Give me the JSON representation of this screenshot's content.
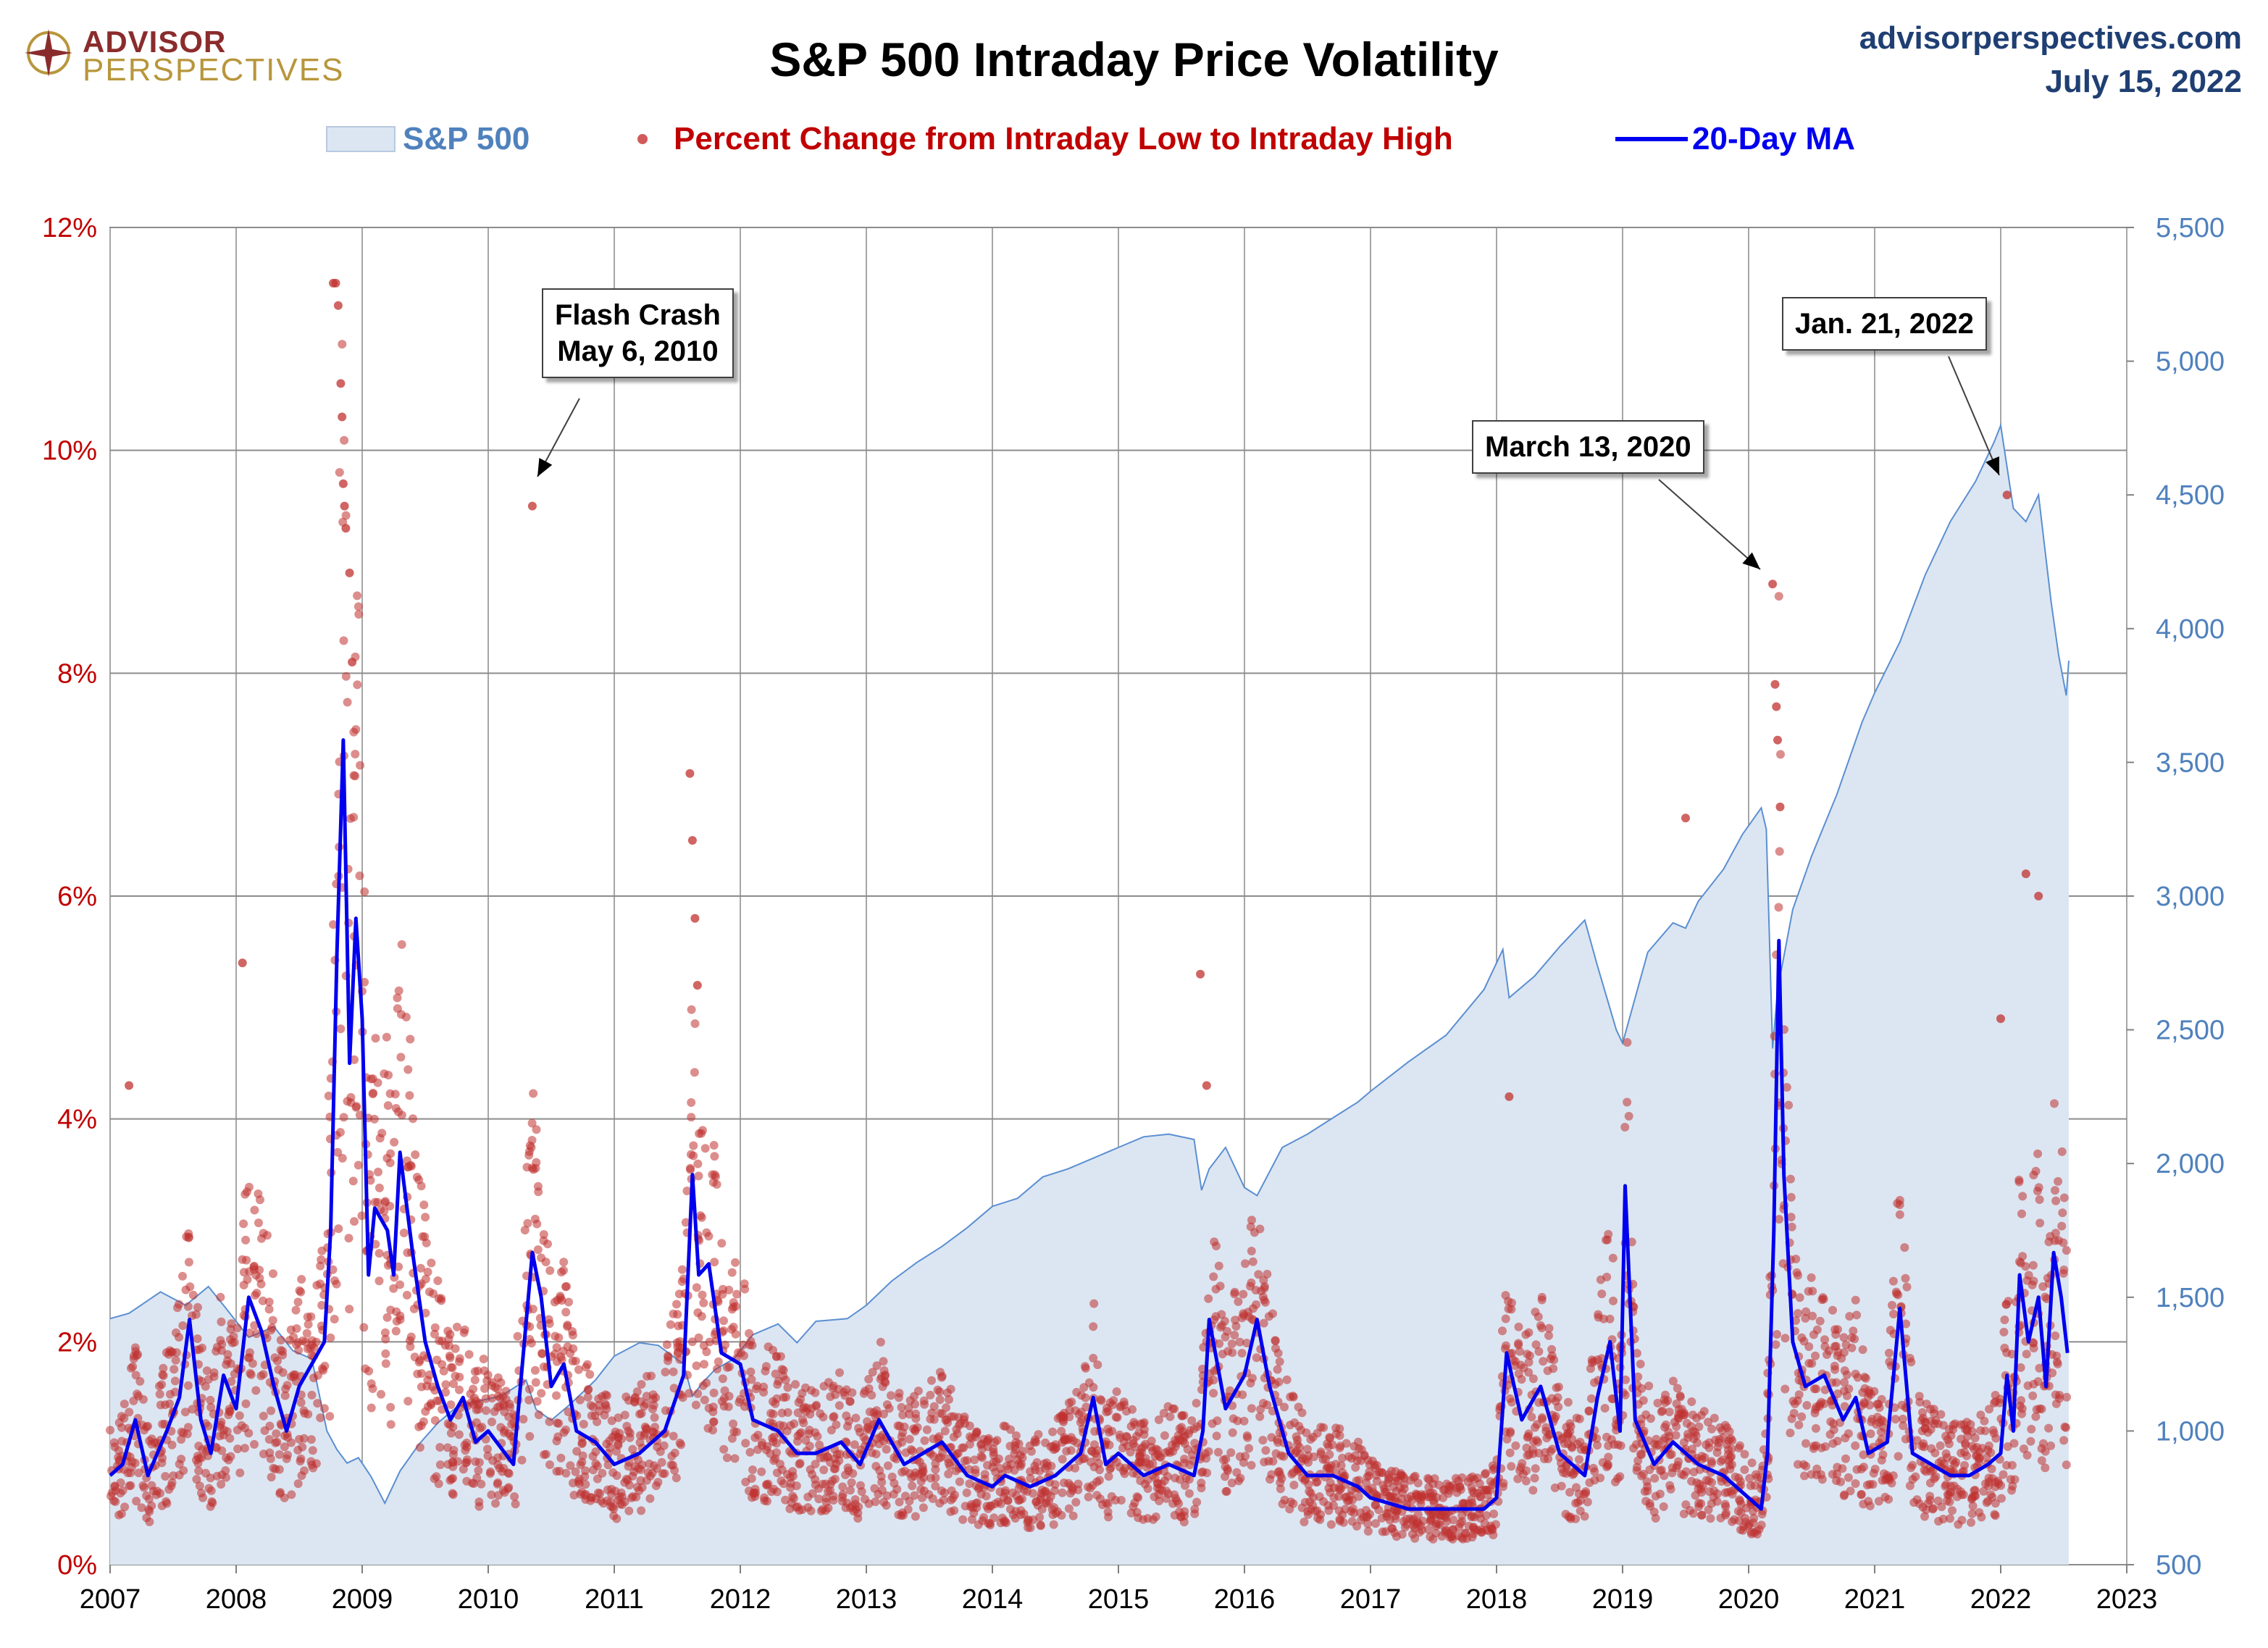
{
  "header": {
    "brand_top": "ADVISOR",
    "brand_bottom": "PERSPECTIVES",
    "title": "S&P 500 Intraday Price Volatility",
    "site": "advisorperspectives.com",
    "date": "July 15, 2022"
  },
  "legend": {
    "sp500": "S&P 500",
    "pct": "Percent Change from Intraday Low to Intraday High",
    "ma": "20-Day MA"
  },
  "callouts": {
    "flash": [
      "Flash Crash",
      "May 6, 2010"
    ],
    "march": [
      "March 13, 2020"
    ],
    "jan": [
      "Jan. 21, 2022"
    ]
  },
  "colors": {
    "area_fill": "#dce6f2",
    "area_line": "#5b8fd1",
    "dots": "#c0312f",
    "ma_line": "#0000ee",
    "left_axis_text": "#c00000",
    "right_axis_text": "#4f81bd",
    "title_text": "#1f3f73"
  },
  "chart_data": {
    "type": "line",
    "title": "S&P 500 Intraday Price Volatility",
    "x_ticks": [
      "2007",
      "2008",
      "2009",
      "2010",
      "2011",
      "2012",
      "2013",
      "2014",
      "2015",
      "2016",
      "2017",
      "2018",
      "2019",
      "2020",
      "2021",
      "2022",
      "2023"
    ],
    "xlim": [
      2007,
      2023
    ],
    "left_axis": {
      "ticks": [
        "0%",
        "2%",
        "4%",
        "6%",
        "8%",
        "10%",
        "12%"
      ],
      "ylim": [
        0,
        12
      ],
      "unit": "%"
    },
    "right_axis": {
      "ticks": [
        "500",
        "1,000",
        "1,500",
        "2,000",
        "2,500",
        "3,000",
        "3,500",
        "4,000",
        "4,500",
        "5,000",
        "5,500"
      ],
      "ylim": [
        500,
        5500
      ]
    },
    "grid": true,
    "legend_position": "top",
    "series": [
      {
        "name": "S&P 500",
        "kind": "area",
        "axis": "right",
        "x": [
          2007.0,
          2007.15,
          2007.4,
          2007.6,
          2007.78,
          2007.9,
          2008.1,
          2008.3,
          2008.45,
          2008.6,
          2008.72,
          2008.8,
          2008.88,
          2008.97,
          2009.07,
          2009.18,
          2009.3,
          2009.45,
          2009.6,
          2009.75,
          2009.9,
          2010.1,
          2010.3,
          2010.38,
          2010.5,
          2010.65,
          2010.85,
          2011.0,
          2011.2,
          2011.35,
          2011.55,
          2011.62,
          2011.7,
          2011.8,
          2011.95,
          2012.1,
          2012.3,
          2012.45,
          2012.6,
          2012.85,
          2013.0,
          2013.2,
          2013.4,
          2013.6,
          2013.8,
          2014.0,
          2014.2,
          2014.4,
          2014.6,
          2014.8,
          2015.0,
          2015.2,
          2015.4,
          2015.6,
          2015.66,
          2015.72,
          2015.85,
          2016.0,
          2016.1,
          2016.3,
          2016.5,
          2016.7,
          2016.9,
          2017.0,
          2017.3,
          2017.6,
          2017.9,
          2018.05,
          2018.1,
          2018.3,
          2018.5,
          2018.7,
          2018.8,
          2018.95,
          2019.0,
          2019.2,
          2019.4,
          2019.5,
          2019.6,
          2019.8,
          2019.95,
          2020.1,
          2020.14,
          2020.19,
          2020.23,
          2020.35,
          2020.5,
          2020.7,
          2020.9,
          2021.0,
          2021.2,
          2021.4,
          2021.6,
          2021.8,
          2021.95,
          2022.0,
          2022.1,
          2022.2,
          2022.3,
          2022.4,
          2022.46,
          2022.52,
          2022.54
        ],
        "values": [
          1420,
          1440,
          1520,
          1470,
          1540,
          1470,
          1350,
          1390,
          1300,
          1270,
          1000,
          930,
          880,
          900,
          830,
          730,
          850,
          950,
          1030,
          1090,
          1110,
          1130,
          1190,
          1080,
          1040,
          1100,
          1190,
          1280,
          1330,
          1320,
          1250,
          1130,
          1180,
          1230,
          1270,
          1360,
          1400,
          1330,
          1410,
          1420,
          1470,
          1560,
          1630,
          1690,
          1760,
          1840,
          1870,
          1950,
          1980,
          2020,
          2060,
          2100,
          2110,
          2090,
          1900,
          1980,
          2060,
          1910,
          1880,
          2060,
          2110,
          2170,
          2230,
          2270,
          2380,
          2480,
          2650,
          2800,
          2620,
          2700,
          2810,
          2910,
          2740,
          2500,
          2450,
          2790,
          2900,
          2880,
          2980,
          3100,
          3230,
          3330,
          3250,
          2430,
          2650,
          2950,
          3150,
          3380,
          3650,
          3760,
          3950,
          4200,
          4400,
          4550,
          4700,
          4760,
          4450,
          4400,
          4500,
          4100,
          3900,
          3750,
          3880
        ]
      },
      {
        "name": "20-Day MA",
        "kind": "line",
        "axis": "left",
        "x": [
          2007.0,
          2007.1,
          2007.2,
          2007.3,
          2007.45,
          2007.55,
          2007.63,
          2007.72,
          2007.8,
          2007.9,
          2008.0,
          2008.1,
          2008.2,
          2008.3,
          2008.4,
          2008.5,
          2008.6,
          2008.7,
          2008.75,
          2008.8,
          2008.85,
          2008.9,
          2008.95,
          2009.0,
          2009.05,
          2009.1,
          2009.2,
          2009.25,
          2009.3,
          2009.4,
          2009.5,
          2009.6,
          2009.7,
          2009.8,
          2009.9,
          2010.0,
          2010.2,
          2010.35,
          2010.42,
          2010.5,
          2010.6,
          2010.7,
          2010.85,
          2011.0,
          2011.2,
          2011.4,
          2011.55,
          2011.62,
          2011.67,
          2011.75,
          2011.85,
          2012.0,
          2012.1,
          2012.3,
          2012.45,
          2012.6,
          2012.8,
          2012.95,
          2013.1,
          2013.3,
          2013.45,
          2013.6,
          2013.8,
          2014.0,
          2014.1,
          2014.3,
          2014.5,
          2014.7,
          2014.8,
          2014.9,
          2015.0,
          2015.2,
          2015.4,
          2015.6,
          2015.67,
          2015.72,
          2015.85,
          2016.0,
          2016.1,
          2016.2,
          2016.35,
          2016.5,
          2016.7,
          2016.9,
          2017.0,
          2017.3,
          2017.6,
          2017.9,
          2018.0,
          2018.08,
          2018.2,
          2018.35,
          2018.5,
          2018.7,
          2018.8,
          2018.9,
          2018.98,
          2019.02,
          2019.1,
          2019.25,
          2019.4,
          2019.6,
          2019.8,
          2020.0,
          2020.1,
          2020.15,
          2020.2,
          2020.24,
          2020.28,
          2020.35,
          2020.45,
          2020.6,
          2020.75,
          2020.85,
          2020.95,
          2021.1,
          2021.2,
          2021.3,
          2021.45,
          2021.6,
          2021.75,
          2021.9,
          2022.0,
          2022.05,
          2022.1,
          2022.15,
          2022.22,
          2022.3,
          2022.36,
          2022.42,
          2022.48,
          2022.53
        ],
        "values": [
          0.8,
          0.9,
          1.3,
          0.8,
          1.2,
          1.5,
          2.2,
          1.3,
          1.0,
          1.7,
          1.4,
          2.4,
          2.1,
          1.6,
          1.2,
          1.6,
          1.8,
          2.0,
          3.0,
          5.5,
          7.4,
          4.5,
          5.8,
          4.9,
          2.6,
          3.2,
          3.0,
          2.6,
          3.7,
          2.8,
          2.0,
          1.6,
          1.3,
          1.5,
          1.1,
          1.2,
          0.9,
          2.8,
          2.4,
          1.6,
          1.8,
          1.2,
          1.1,
          0.9,
          1.0,
          1.2,
          1.7,
          3.5,
          2.6,
          2.7,
          1.9,
          1.8,
          1.3,
          1.2,
          1.0,
          1.0,
          1.1,
          0.9,
          1.3,
          0.9,
          1.0,
          1.1,
          0.8,
          0.7,
          0.8,
          0.7,
          0.8,
          1.0,
          1.5,
          0.9,
          1.0,
          0.8,
          0.9,
          0.8,
          1.2,
          2.2,
          1.4,
          1.7,
          2.2,
          1.6,
          1.0,
          0.8,
          0.8,
          0.7,
          0.6,
          0.5,
          0.5,
          0.5,
          0.6,
          1.9,
          1.3,
          1.6,
          1.0,
          0.8,
          1.5,
          2.0,
          1.2,
          3.4,
          1.3,
          0.9,
          1.1,
          0.9,
          0.8,
          0.6,
          0.5,
          1.0,
          3.0,
          5.6,
          3.5,
          2.0,
          1.6,
          1.7,
          1.3,
          1.5,
          1.0,
          1.1,
          2.3,
          1.0,
          0.9,
          0.8,
          0.8,
          0.9,
          1.0,
          1.7,
          1.2,
          2.6,
          2.0,
          2.4,
          1.6,
          2.8,
          2.4,
          1.9
        ]
      },
      {
        "name": "Percent Change from Intraday Low to Intraday High",
        "kind": "scatter",
        "axis": "left",
        "x": [
          2008.77,
          2008.79,
          2008.81,
          2008.83,
          2008.84,
          2008.85,
          2008.86,
          2008.87,
          2008.9,
          2008.92,
          2010.35,
          2011.6,
          2011.62,
          2011.64,
          2011.66,
          2020.19,
          2020.21,
          2020.22,
          2020.23,
          2020.25,
          2022.0,
          2022.05,
          2022.2,
          2022.3,
          2018.1,
          2019.5,
          2015.65,
          2015.7,
          2007.15,
          2008.05
        ],
        "values": [
          11.5,
          11.5,
          11.3,
          10.6,
          10.3,
          9.7,
          9.5,
          9.3,
          8.9,
          8.1,
          9.5,
          7.1,
          6.5,
          5.8,
          5.2,
          8.8,
          7.9,
          7.7,
          7.4,
          6.8,
          4.9,
          9.6,
          6.2,
          6.0,
          4.2,
          6.7,
          5.3,
          4.3,
          4.3,
          5.4
        ]
      }
    ],
    "annotations": [
      "Flash Crash May 6, 2010",
      "March 13, 2020",
      "Jan. 21, 2022"
    ]
  }
}
